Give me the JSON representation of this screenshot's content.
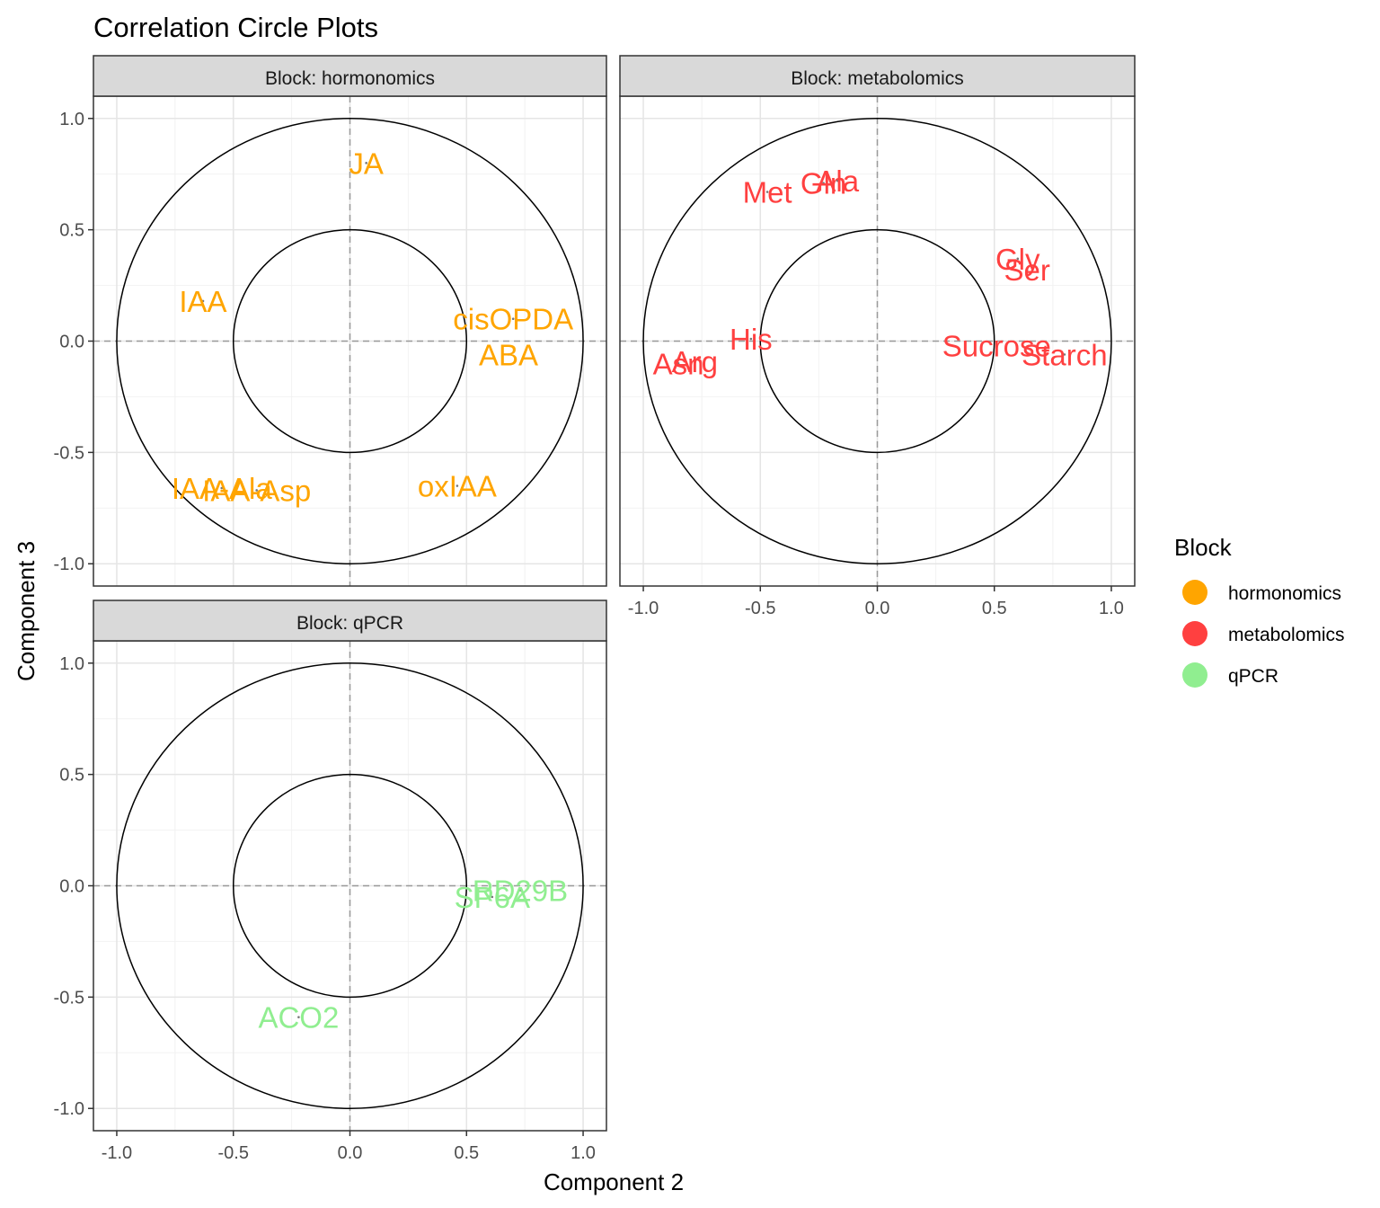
{
  "chart_data": {
    "type": "scatter",
    "title": "Correlation Circle Plots",
    "xlabel": "Component  2",
    "ylabel": "Component  3",
    "xlim": [
      -1.1,
      1.1
    ],
    "ylim": [
      -1.1,
      1.1
    ],
    "x_ticks": [
      "-1.0",
      "-0.5",
      "0.0",
      "0.5",
      "1.0"
    ],
    "y_ticks": [
      "-1.0",
      "-0.5",
      "0.0",
      "0.5",
      "1.0"
    ],
    "circles": [
      0.5,
      1.0
    ],
    "grid": true,
    "legend": {
      "title": "Block",
      "position": "right",
      "items": [
        {
          "label": "hormonomics",
          "color": "#FFA500"
        },
        {
          "label": "metabolomics",
          "color": "#FF4040"
        },
        {
          "label": "qPCR",
          "color": "#90EE90"
        }
      ]
    },
    "panels": [
      {
        "strip": "Block: hormonomics",
        "color": "#FFA500",
        "points": [
          {
            "label": "JA",
            "x": 0.07,
            "y": 0.8
          },
          {
            "label": "IAA",
            "x": -0.63,
            "y": 0.18
          },
          {
            "label": "cisOPDA",
            "x": 0.7,
            "y": 0.1
          },
          {
            "label": "ABA",
            "x": 0.68,
            "y": -0.06
          },
          {
            "label": "IAA-Ala",
            "x": -0.55,
            "y": -0.66
          },
          {
            "label": "IAA-Asp",
            "x": -0.4,
            "y": -0.67
          },
          {
            "label": "oxIAA",
            "x": 0.46,
            "y": -0.65
          }
        ]
      },
      {
        "strip": "Block: metabolomics",
        "color": "#FF4040",
        "points": [
          {
            "label": "Met",
            "x": -0.47,
            "y": 0.67
          },
          {
            "label": "Gln",
            "x": -0.23,
            "y": 0.71
          },
          {
            "label": "Ala",
            "x": -0.17,
            "y": 0.72
          },
          {
            "label": "Gly",
            "x": 0.6,
            "y": 0.37
          },
          {
            "label": "Ser",
            "x": 0.64,
            "y": 0.32
          },
          {
            "label": "His",
            "x": -0.54,
            "y": 0.01
          },
          {
            "label": "Sucrose",
            "x": 0.51,
            "y": -0.02
          },
          {
            "label": "Starch",
            "x": 0.8,
            "y": -0.06
          },
          {
            "label": "Asn",
            "x": -0.85,
            "y": -0.1
          },
          {
            "label": "Arg",
            "x": -0.78,
            "y": -0.09
          }
        ]
      },
      {
        "strip": "Block: qPCR",
        "color": "#90EE90",
        "points": [
          {
            "label": "RD29B",
            "x": 0.73,
            "y": -0.02
          },
          {
            "label": "SP6A",
            "x": 0.61,
            "y": -0.05
          },
          {
            "label": "ACO2",
            "x": -0.22,
            "y": -0.59
          }
        ]
      }
    ]
  }
}
